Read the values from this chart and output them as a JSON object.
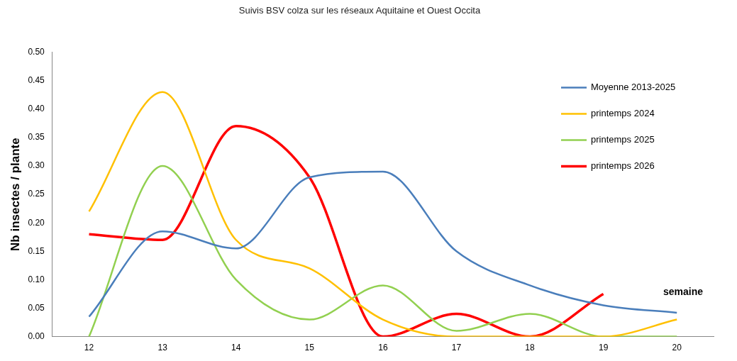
{
  "chart_data": {
    "type": "line",
    "title": "Suivis BSV colza sur les réseaux Aquitaine et Ouest Occita",
    "ylabel": "Nb insectes / plante",
    "xlabel": "semaine",
    "categories": [
      "12",
      "13",
      "14",
      "15",
      "16",
      "17",
      "18",
      "19",
      "20"
    ],
    "series": [
      {
        "name": "Moyenne 2013-2025",
        "color": "#4a7ebb",
        "values": [
          0.035,
          0.185,
          0.155,
          0.28,
          0.29,
          0.15,
          0.09,
          0.055,
          0.042
        ]
      },
      {
        "name": "printemps 2024",
        "color": "#ffc000",
        "values": [
          0.22,
          0.43,
          0.17,
          0.12,
          0.03,
          0,
          0,
          0,
          0.03
        ]
      },
      {
        "name": "printemps 2025",
        "color": "#92d050",
        "values": [
          0,
          0.3,
          0.1,
          0.03,
          0.09,
          0.01,
          0.04,
          0,
          0
        ]
      },
      {
        "name": "printemps 2026",
        "color": "#ff0000",
        "values": [
          0.18,
          0.17,
          0.37,
          0.28,
          0,
          0.04,
          0,
          0.075,
          null
        ]
      }
    ],
    "ylim": [
      0,
      0.5
    ],
    "yticks": [
      {
        "value": 0,
        "label": "0.00"
      },
      {
        "value": 0.05,
        "label": "0.05"
      },
      {
        "value": 0.1,
        "label": "0.10"
      },
      {
        "value": 0.15,
        "label": "0.15"
      },
      {
        "value": 0.2,
        "label": "0.20"
      },
      {
        "value": 0.25,
        "label": "0.25"
      },
      {
        "value": 0.3,
        "label": "0.30"
      },
      {
        "value": 0.35,
        "label": "0.35"
      },
      {
        "value": 0.4,
        "label": "0.40"
      },
      {
        "value": 0.45,
        "label": "0.45"
      },
      {
        "value": 0.5,
        "label": "0.50"
      }
    ],
    "grid": false,
    "legend": "top right",
    "marker": "none",
    "line_style": "solid"
  }
}
